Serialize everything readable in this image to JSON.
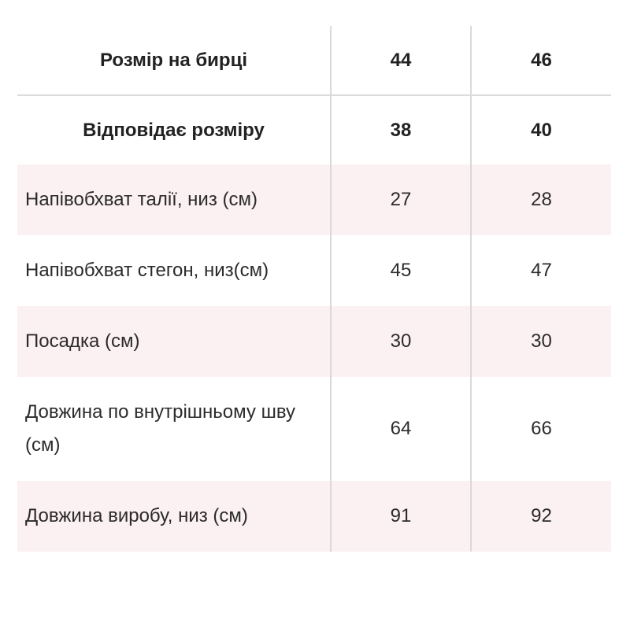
{
  "table": {
    "header": {
      "label": "Розмір на бирці",
      "a": "44",
      "b": "46"
    },
    "subheader": {
      "label": "Відповідає розміру",
      "a": "38",
      "b": "40"
    },
    "rows": [
      {
        "label": "Напівобхват талії, низ (см)",
        "a": "27",
        "b": "28"
      },
      {
        "label": "Напівобхват стегон, низ(см)",
        "a": "45",
        "b": "47"
      },
      {
        "label": "Посадка (см)",
        "a": "30",
        "b": "30"
      },
      {
        "label": "Довжина по внутрішньому шву (см)",
        "a": "64",
        "b": "66"
      },
      {
        "label": "Довжина виробу, низ (см)",
        "a": "91",
        "b": "92"
      }
    ]
  },
  "colors": {
    "stripe": "#fbf0f2",
    "divider": "#d9d9d9",
    "text": "#2b2b2b"
  }
}
